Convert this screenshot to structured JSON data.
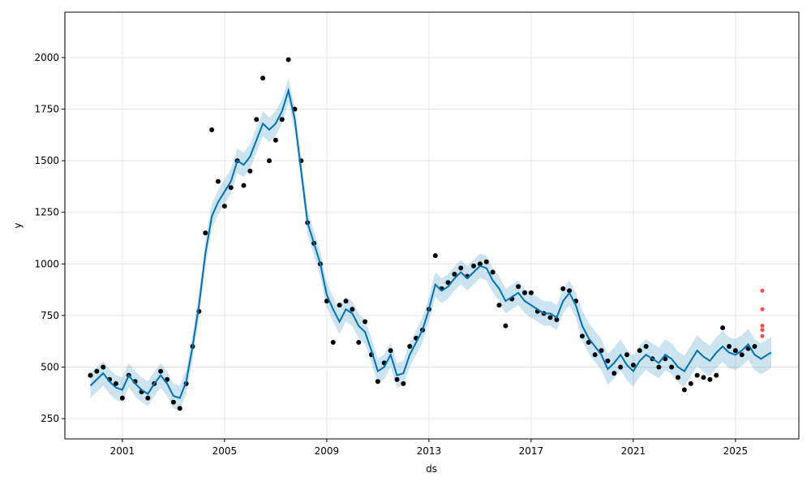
{
  "chart_data": {
    "type": "forecast",
    "xlabel": "ds",
    "ylabel": "y",
    "grid": true,
    "xlim": [
      1998.75,
      2027.48
    ],
    "ylim": [
      152,
      2220
    ],
    "xticks": [
      2001,
      2005,
      2009,
      2013,
      2017,
      2021,
      2025
    ],
    "yticks": [
      250,
      500,
      750,
      1000,
      1250,
      1500,
      1750,
      2000
    ],
    "x": [
      1999.75,
      2000,
      2000.25,
      2000.5,
      2000.75,
      2001,
      2001.25,
      2001.5,
      2001.75,
      2002,
      2002.25,
      2002.5,
      2002.75,
      2003,
      2003.25,
      2003.5,
      2003.75,
      2004,
      2004.25,
      2004.5,
      2004.75,
      2005,
      2005.25,
      2005.5,
      2005.75,
      2006,
      2006.25,
      2006.5,
      2006.75,
      2007,
      2007.25,
      2007.5,
      2007.75,
      2008,
      2008.25,
      2008.5,
      2008.75,
      2009,
      2009.25,
      2009.5,
      2009.75,
      2010,
      2010.25,
      2010.5,
      2010.75,
      2011,
      2011.25,
      2011.5,
      2011.75,
      2012,
      2012.25,
      2012.5,
      2012.75,
      2013,
      2013.25,
      2013.5,
      2013.75,
      2014,
      2014.25,
      2014.5,
      2014.75,
      2015,
      2015.25,
      2015.5,
      2015.75,
      2016,
      2016.25,
      2016.5,
      2016.75,
      2017,
      2017.25,
      2017.5,
      2017.75,
      2018,
      2018.25,
      2018.5,
      2018.75,
      2019,
      2019.25,
      2019.5,
      2019.75,
      2020,
      2020.25,
      2020.5,
      2020.75,
      2021,
      2021.25,
      2021.5,
      2021.75,
      2022,
      2022.25,
      2022.5,
      2022.75,
      2023,
      2023.25,
      2023.5,
      2023.75,
      2024,
      2024.25,
      2024.5,
      2024.75,
      2025,
      2025.25,
      2025.5,
      2025.75,
      2026,
      2026.25,
      2026.4
    ],
    "forecast": {
      "color": "#0072b2",
      "band_color": "#0072b2",
      "values": [
        410,
        440,
        470,
        430,
        400,
        390,
        460,
        420,
        390,
        370,
        420,
        460,
        420,
        360,
        350,
        430,
        600,
        800,
        1050,
        1230,
        1300,
        1350,
        1400,
        1500,
        1480,
        1520,
        1600,
        1680,
        1650,
        1680,
        1740,
        1840,
        1700,
        1450,
        1200,
        1100,
        1000,
        850,
        780,
        720,
        780,
        760,
        700,
        670,
        580,
        480,
        500,
        560,
        460,
        470,
        560,
        620,
        680,
        780,
        900,
        870,
        890,
        930,
        960,
        930,
        960,
        990,
        980,
        920,
        880,
        820,
        840,
        860,
        820,
        800,
        780,
        760,
        760,
        740,
        820,
        860,
        800,
        700,
        640,
        600,
        560,
        490,
        520,
        560,
        510,
        480,
        530,
        560,
        540,
        520,
        560,
        540,
        500,
        480,
        530,
        580,
        550,
        530,
        570,
        600,
        570,
        560,
        580,
        610,
        560,
        540,
        560,
        570
      ],
      "lower": [
        350,
        380,
        410,
        370,
        340,
        330,
        400,
        360,
        330,
        310,
        360,
        400,
        360,
        300,
        290,
        370,
        540,
        740,
        990,
        1170,
        1240,
        1290,
        1340,
        1440,
        1420,
        1460,
        1540,
        1620,
        1590,
        1620,
        1680,
        1780,
        1640,
        1390,
        1140,
        1040,
        940,
        790,
        720,
        660,
        720,
        700,
        640,
        610,
        520,
        420,
        440,
        500,
        400,
        410,
        500,
        560,
        620,
        720,
        840,
        810,
        830,
        870,
        900,
        870,
        900,
        930,
        920,
        860,
        820,
        760,
        780,
        800,
        760,
        740,
        720,
        700,
        700,
        680,
        760,
        800,
        740,
        625,
        565,
        525,
        485,
        415,
        445,
        485,
        435,
        405,
        455,
        485,
        465,
        445,
        485,
        465,
        425,
        405,
        455,
        505,
        475,
        455,
        495,
        525,
        495,
        485,
        505,
        535,
        485,
        465,
        485,
        495
      ],
      "upper": [
        470,
        500,
        530,
        490,
        460,
        450,
        520,
        480,
        450,
        430,
        480,
        520,
        480,
        420,
        410,
        490,
        660,
        860,
        1110,
        1290,
        1360,
        1410,
        1460,
        1560,
        1540,
        1580,
        1660,
        1740,
        1710,
        1740,
        1800,
        1900,
        1760,
        1510,
        1260,
        1160,
        1060,
        910,
        840,
        780,
        840,
        820,
        760,
        730,
        640,
        540,
        560,
        620,
        520,
        530,
        620,
        680,
        740,
        840,
        960,
        930,
        950,
        990,
        1020,
        990,
        1020,
        1050,
        1040,
        980,
        940,
        880,
        900,
        920,
        880,
        860,
        840,
        820,
        820,
        800,
        880,
        920,
        860,
        775,
        715,
        675,
        635,
        565,
        595,
        635,
        585,
        555,
        605,
        635,
        615,
        595,
        635,
        615,
        575,
        555,
        605,
        655,
        625,
        605,
        645,
        675,
        645,
        635,
        655,
        685,
        635,
        615,
        635,
        645
      ]
    },
    "history": {
      "color": "#000000",
      "values": [
        460,
        480,
        500,
        440,
        420,
        350,
        460,
        430,
        380,
        350,
        420,
        480,
        440,
        330,
        300,
        420,
        600,
        770,
        1150,
        1650,
        1400,
        1280,
        1370,
        1500,
        1380,
        1450,
        1700,
        1900,
        1500,
        1600,
        1700,
        1990,
        1750,
        1500,
        1200,
        1100,
        1000,
        820,
        620,
        800,
        820,
        780,
        620,
        720,
        560,
        430,
        520,
        580,
        440,
        420,
        600,
        640,
        680,
        780,
        1040,
        880,
        910,
        950,
        980,
        940,
        990,
        1000,
        1010,
        960,
        800,
        700,
        830,
        890,
        860,
        860,
        770,
        760,
        740,
        730,
        880,
        870,
        820,
        650,
        620,
        560,
        580,
        530,
        470,
        500,
        560,
        510,
        580,
        600,
        540,
        500,
        540,
        500,
        450,
        390,
        420,
        460,
        450,
        440,
        460,
        690,
        600,
        580,
        560,
        590,
        600,
        null,
        null,
        null
      ]
    },
    "recent": {
      "color": "#ff0000",
      "x": [
        2026.05,
        2026.05,
        2026.05,
        2026.05,
        2026.05
      ],
      "values": [
        650,
        680,
        700,
        780,
        870
      ]
    }
  }
}
